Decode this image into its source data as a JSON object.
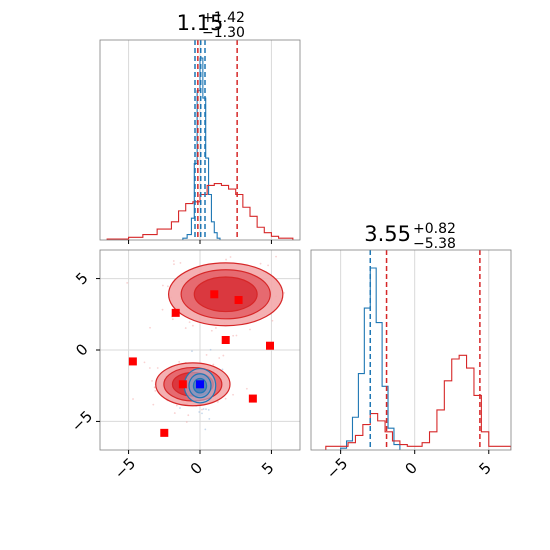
{
  "chart_data": [
    {
      "type": "histogram",
      "panel": "top-left marginal",
      "title": {
        "median": "1.15",
        "plus": "+1.42",
        "minus": "−1.30"
      },
      "xlim": [
        -7,
        7
      ],
      "grid": true,
      "series": [
        {
          "color": "#1f77b4",
          "edges": [
            -1.2,
            -0.9,
            -0.6,
            -0.4,
            -0.2,
            0.0,
            0.2,
            0.4,
            0.6,
            0.8,
            1.0,
            1.2,
            1.4
          ],
          "heights": [
            0.01,
            0.03,
            0.12,
            0.42,
            0.82,
            1.0,
            0.78,
            0.45,
            0.25,
            0.1,
            0.04,
            0.01
          ]
        },
        {
          "color": "#d62728",
          "edges": [
            -6.5,
            -5,
            -4,
            -3,
            -2,
            -1.5,
            -1,
            -0.5,
            0,
            0.5,
            1,
            1.5,
            2,
            2.5,
            3,
            3.5,
            4,
            4.5,
            5,
            5.5,
            6.5
          ],
          "heights": [
            0.005,
            0.015,
            0.03,
            0.06,
            0.1,
            0.16,
            0.2,
            0.21,
            0.25,
            0.3,
            0.31,
            0.3,
            0.28,
            0.25,
            0.18,
            0.13,
            0.07,
            0.04,
            0.02,
            0.01
          ]
        }
      ],
      "quantile_lines": [
        {
          "color": "#1f77b4",
          "x": [
            -0.35,
            0.05,
            0.35
          ]
        },
        {
          "color": "#d62728",
          "x": [
            -0.15,
            2.6
          ]
        }
      ]
    },
    {
      "type": "contour+scatter",
      "panel": "bottom-left joint",
      "xlim": [
        -7,
        7
      ],
      "ylim": [
        -7,
        7
      ],
      "xticks": [
        "−5",
        "0",
        "5"
      ],
      "yticks": [
        "5",
        "0",
        "−5"
      ],
      "grid": true,
      "red_modes": [
        {
          "cx": 1.8,
          "cy": 3.9,
          "rx": 4.0,
          "ry": 2.2
        },
        {
          "cx": -0.5,
          "cy": -2.4,
          "rx": 2.6,
          "ry": 1.5
        }
      ],
      "blue_mode": {
        "cx": 0.0,
        "cy": -2.5,
        "rx": 1.1,
        "ry": 1.2
      },
      "markers": [
        {
          "x": 1.0,
          "y": 3.9,
          "color": "#ff0000"
        },
        {
          "x": 2.7,
          "y": 3.5,
          "color": "#ff0000"
        },
        {
          "x": -1.7,
          "y": 2.6,
          "color": "#ff0000"
        },
        {
          "x": 1.8,
          "y": 0.7,
          "color": "#ff0000"
        },
        {
          "x": 4.9,
          "y": 0.3,
          "color": "#ff0000"
        },
        {
          "x": -4.7,
          "y": -0.8,
          "color": "#ff0000"
        },
        {
          "x": -1.2,
          "y": -2.4,
          "color": "#ff0000"
        },
        {
          "x": 0.0,
          "y": -2.4,
          "color": "#0000ff"
        },
        {
          "x": 3.7,
          "y": -3.4,
          "color": "#ff0000"
        },
        {
          "x": -2.5,
          "y": -5.8,
          "color": "#ff0000"
        }
      ]
    },
    {
      "type": "histogram",
      "panel": "bottom-right marginal",
      "title": {
        "median": "3.55",
        "plus": "+0.82",
        "minus": "−5.38"
      },
      "xlim": [
        -7,
        6.5
      ],
      "xticks": [
        "−5",
        "0",
        "5"
      ],
      "grid": true,
      "series": [
        {
          "color": "#1f77b4",
          "edges": [
            -5.0,
            -4.6,
            -4.2,
            -3.8,
            -3.4,
            -3.0,
            -2.6,
            -2.2,
            -1.8,
            -1.4,
            -1.0
          ],
          "heights": [
            0.01,
            0.05,
            0.18,
            0.42,
            0.78,
            1.0,
            0.7,
            0.35,
            0.12,
            0.03
          ]
        },
        {
          "color": "#d62728",
          "edges": [
            -6.0,
            -4.5,
            -4.0,
            -3.5,
            -3.0,
            -2.5,
            -2.0,
            -1.5,
            -1.0,
            -0.5,
            0.0,
            0.5,
            1.0,
            1.5,
            2.0,
            2.5,
            3.0,
            3.5,
            4.0,
            4.5,
            5.0,
            6.5
          ],
          "heights": [
            0.02,
            0.04,
            0.08,
            0.14,
            0.2,
            0.16,
            0.1,
            0.05,
            0.03,
            0.02,
            0.02,
            0.04,
            0.1,
            0.22,
            0.38,
            0.5,
            0.52,
            0.45,
            0.3,
            0.1,
            0.02
          ]
        }
      ],
      "quantile_lines": [
        {
          "color": "#1f77b4",
          "x": [
            -3.0
          ]
        },
        {
          "color": "#d62728",
          "x": [
            -1.9,
            4.4
          ]
        }
      ]
    }
  ]
}
